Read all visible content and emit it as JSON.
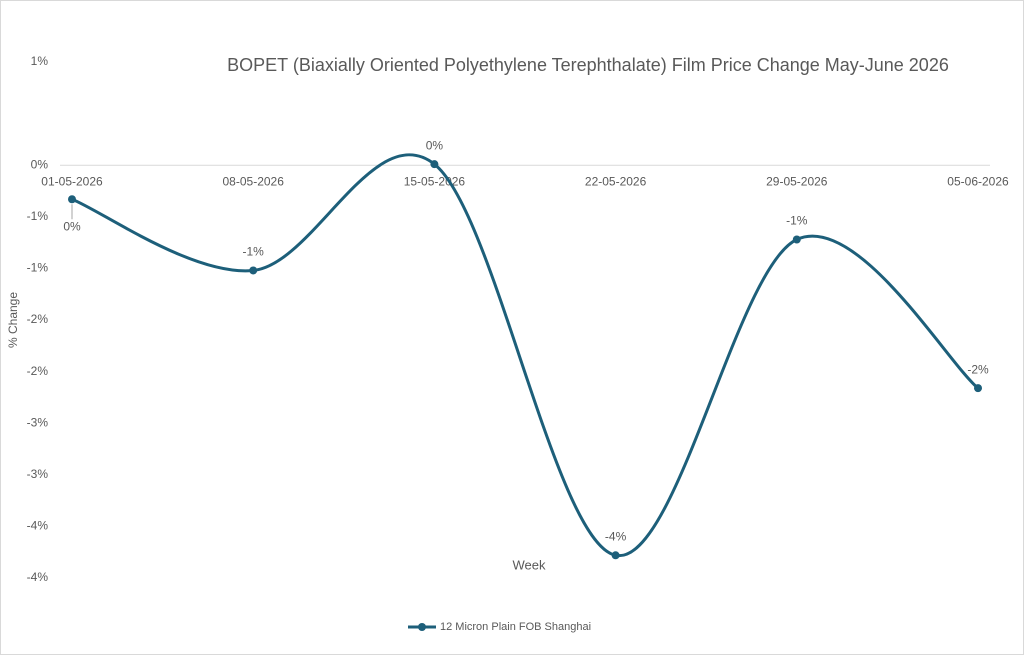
{
  "chart_data": {
    "type": "line",
    "title": "BOPET (Biaxially Oriented Polyethylene Terephthalate) Film Price Change May-June 2026",
    "x_label": "Week",
    "y_label": "% Change",
    "categories": [
      "01-05-2026",
      "08-05-2026",
      "15-05-2026",
      "22-05-2026",
      "29-05-2026",
      "05-06-2026"
    ],
    "series": [
      {
        "name": "12 Micron Plain FOB Shanghai",
        "color": "#1d5f7a",
        "values": [
          -0.33,
          -1.02,
          0.01,
          -3.78,
          -0.72,
          -2.16
        ],
        "value_labels": [
          "0%",
          "-1%",
          "0%",
          "-4%",
          "-1%",
          "-2%"
        ]
      }
    ],
    "ylim": [
      -4,
      1
    ],
    "yticks": [
      {
        "value": 1,
        "label": "1%"
      },
      {
        "value": 0,
        "label": "0%"
      },
      {
        "value": -0.5,
        "label": "-1%"
      },
      {
        "value": -1,
        "label": "-1%"
      },
      {
        "value": -1.5,
        "label": "-2%"
      },
      {
        "value": -2,
        "label": "-2%"
      },
      {
        "value": -2.5,
        "label": "-3%"
      },
      {
        "value": -3,
        "label": "-3%"
      },
      {
        "value": -3.5,
        "label": "-4%"
      },
      {
        "value": -4,
        "label": "-4%"
      }
    ],
    "grid": false,
    "legend": "bottom",
    "smooth": true
  }
}
